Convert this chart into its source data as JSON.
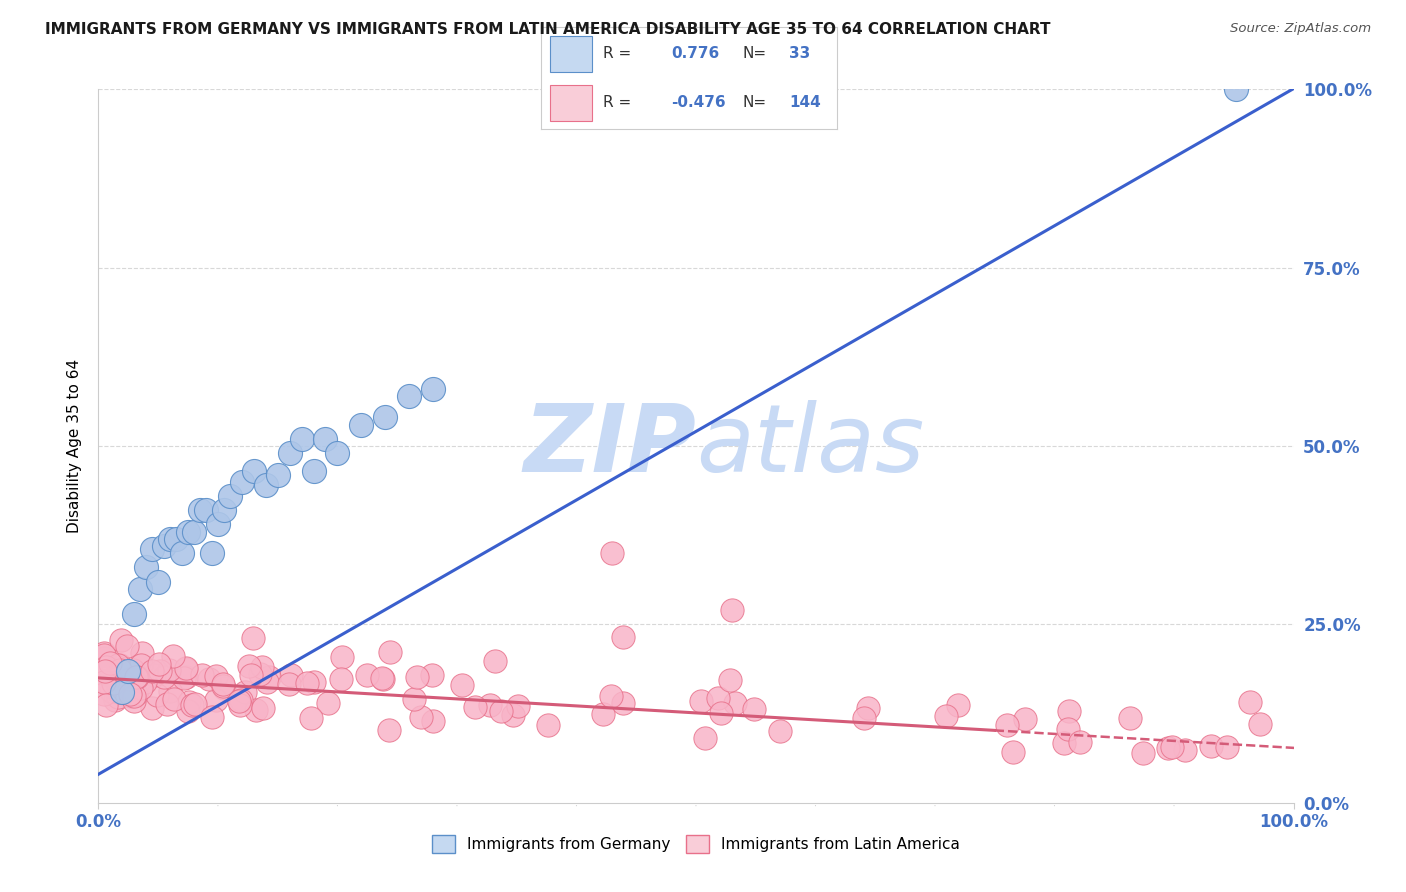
{
  "title": "IMMIGRANTS FROM GERMANY VS IMMIGRANTS FROM LATIN AMERICA DISABILITY AGE 35 TO 64 CORRELATION CHART",
  "source": "Source: ZipAtlas.com",
  "ylabel": "Disability Age 35 to 64",
  "r_germany": 0.776,
  "n_germany": 33,
  "r_latin": -0.476,
  "n_latin": 144,
  "color_germany": "#aec6e8",
  "color_latin": "#f8b4c8",
  "edge_color_germany": "#5b8fc9",
  "edge_color_latin": "#e8708a",
  "line_color_germany": "#3a5fcd",
  "line_color_latin": "#d45b78",
  "legend_box_germany": "#c5d9f1",
  "legend_box_latin": "#f9cdd8",
  "watermark_color": "#c8daf5",
  "background": "#ffffff",
  "grid_color": "#d8d8d8",
  "tick_color": "#4472c4",
  "axis_color": "#cccccc",
  "title_color": "#1a1a1a",
  "source_color": "#555555"
}
